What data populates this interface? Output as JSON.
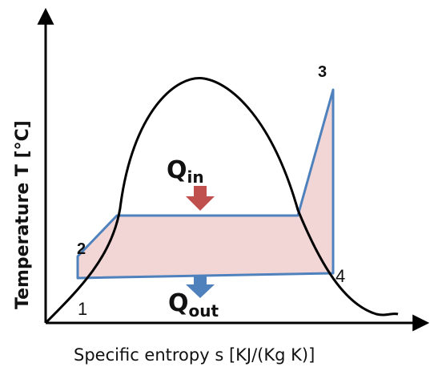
{
  "axes": {
    "y_label": "Temperature T  [°C]",
    "x_label": "Specific entropy s  [KJ/(Kg K)]"
  },
  "points": {
    "p1": "1",
    "p2": "2",
    "p3": "3",
    "p4": "4"
  },
  "heat": {
    "q_in_main": "Q",
    "q_in_sub": "in",
    "q_out_main": "Q",
    "q_out_sub": "out"
  },
  "colors": {
    "cycle_fill": "#f2d6d6",
    "cycle_stroke": "#4f81bd",
    "q_in_arrow": "#c0504d",
    "q_out_arrow": "#4f81bd",
    "dome": "#000000",
    "axis": "#000000"
  }
}
